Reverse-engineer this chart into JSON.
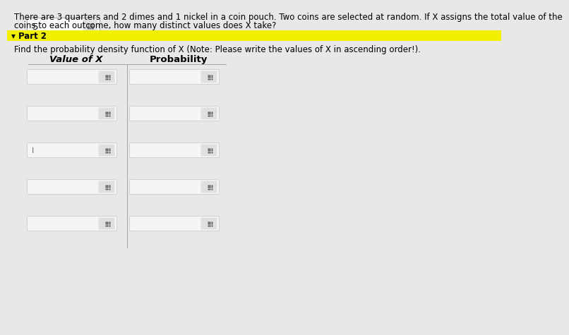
{
  "title_line1": "There are 3 quarters and 2 dimes and 1 nickel in a coin pouch. Two coins are selected at random. If X assigns the total value of the",
  "title_line2": "coins to each outcome, how many distinct values does X take?",
  "answer_value": "5",
  "part2_label": "▾ Part 2",
  "part2_instruction": "Find the probability density function of X (Note: Please write the values of X in ascending order!).",
  "col1_header": "Value of X",
  "col2_header": "Probability",
  "num_rows": 5,
  "bg_color": "#e8e8e8",
  "white": "#ffffff",
  "yellow_bar": "#f0f000",
  "grid_icon_color": "#555555",
  "answer_box_bg": "#ffffff",
  "answer_box_border": "#aaaaaa",
  "input_box_bg": "#f5f5f5",
  "input_box_border": "#cccccc",
  "icon_box_bg": "#e0e0e0",
  "table_line_color": "#999999",
  "title_fontsize": 8.5,
  "part2_fontsize": 8.5,
  "header_fontsize": 9.5,
  "answer_fontsize": 9.5
}
